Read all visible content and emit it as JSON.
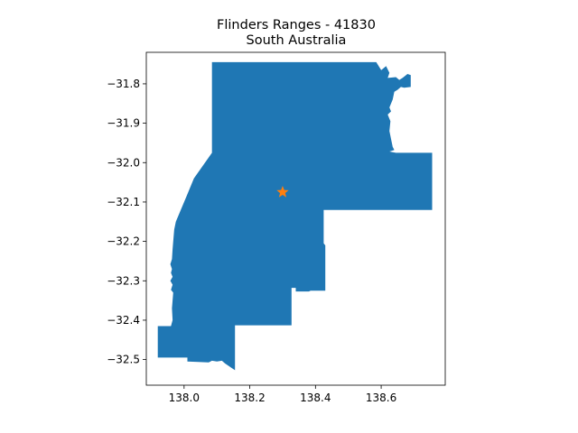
{
  "title": {
    "line1": "Flinders Ranges - 41830",
    "line2": "South Australia"
  },
  "colors": {
    "region_fill": "#1f77b4",
    "marker": "#ff7f0e",
    "axis": "#000000",
    "background": "#ffffff"
  },
  "chart_data": {
    "type": "map",
    "grid": false,
    "xlim": [
      137.885,
      138.795
    ],
    "ylim": [
      -32.565,
      -31.72
    ],
    "x_ticks": [
      {
        "value": 138.0,
        "label": "138.0"
      },
      {
        "value": 138.2,
        "label": "138.2"
      },
      {
        "value": 138.4,
        "label": "138.4"
      },
      {
        "value": 138.6,
        "label": "138.6"
      }
    ],
    "y_ticks": [
      {
        "value": -31.8,
        "label": "−31.8"
      },
      {
        "value": -31.9,
        "label": "−31.9"
      },
      {
        "value": -32.0,
        "label": "−32.0"
      },
      {
        "value": -32.1,
        "label": "−32.1"
      },
      {
        "value": -32.2,
        "label": "−32.2"
      },
      {
        "value": -32.3,
        "label": "−32.3"
      },
      {
        "value": -32.4,
        "label": "−32.4"
      },
      {
        "value": -32.5,
        "label": "−32.5"
      }
    ],
    "region_outline_lonlat": [
      [
        138.085,
        -31.745
      ],
      [
        138.585,
        -31.745
      ],
      [
        138.6,
        -31.765
      ],
      [
        138.615,
        -31.755
      ],
      [
        138.625,
        -31.772
      ],
      [
        138.62,
        -31.785
      ],
      [
        138.645,
        -31.783
      ],
      [
        138.655,
        -31.79
      ],
      [
        138.665,
        -31.785
      ],
      [
        138.68,
        -31.775
      ],
      [
        138.69,
        -31.778
      ],
      [
        138.69,
        -31.808
      ],
      [
        138.67,
        -31.81
      ],
      [
        138.66,
        -31.808
      ],
      [
        138.65,
        -31.815
      ],
      [
        138.64,
        -31.82
      ],
      [
        138.635,
        -31.84
      ],
      [
        138.625,
        -31.86
      ],
      [
        138.63,
        -31.87
      ],
      [
        138.62,
        -31.878
      ],
      [
        138.628,
        -31.895
      ],
      [
        138.625,
        -31.92
      ],
      [
        138.63,
        -31.94
      ],
      [
        138.635,
        -31.96
      ],
      [
        138.64,
        -31.968
      ],
      [
        138.625,
        -31.972
      ],
      [
        138.645,
        -31.975
      ],
      [
        138.755,
        -31.975
      ],
      [
        138.755,
        -32.12
      ],
      [
        138.425,
        -32.12
      ],
      [
        138.425,
        -32.205
      ],
      [
        138.43,
        -32.21
      ],
      [
        138.43,
        -32.325
      ],
      [
        138.385,
        -32.325
      ],
      [
        138.38,
        -32.327
      ],
      [
        138.34,
        -32.327
      ],
      [
        138.34,
        -32.318
      ],
      [
        138.327,
        -32.318
      ],
      [
        138.327,
        -32.413
      ],
      [
        138.155,
        -32.413
      ],
      [
        138.155,
        -32.527
      ],
      [
        138.125,
        -32.51
      ],
      [
        138.115,
        -32.503
      ],
      [
        138.1,
        -32.505
      ],
      [
        138.085,
        -32.503
      ],
      [
        138.075,
        -32.507
      ],
      [
        138.01,
        -32.505
      ],
      [
        138.01,
        -32.495
      ],
      [
        137.92,
        -32.495
      ],
      [
        137.92,
        -32.415
      ],
      [
        137.96,
        -32.415
      ],
      [
        137.965,
        -32.4
      ],
      [
        137.963,
        -32.37
      ],
      [
        137.967,
        -32.33
      ],
      [
        137.96,
        -32.323
      ],
      [
        137.965,
        -32.31
      ],
      [
        137.958,
        -32.3
      ],
      [
        137.965,
        -32.29
      ],
      [
        137.96,
        -32.28
      ],
      [
        137.963,
        -32.27
      ],
      [
        137.958,
        -32.258
      ],
      [
        137.963,
        -32.245
      ],
      [
        137.965,
        -32.22
      ],
      [
        137.967,
        -32.2
      ],
      [
        137.97,
        -32.17
      ],
      [
        137.975,
        -32.15
      ],
      [
        138.01,
        -32.08
      ],
      [
        138.03,
        -32.04
      ],
      [
        138.085,
        -31.975
      ]
    ],
    "marker": {
      "lon": 138.3,
      "lat": -32.075,
      "symbol": "star"
    }
  }
}
